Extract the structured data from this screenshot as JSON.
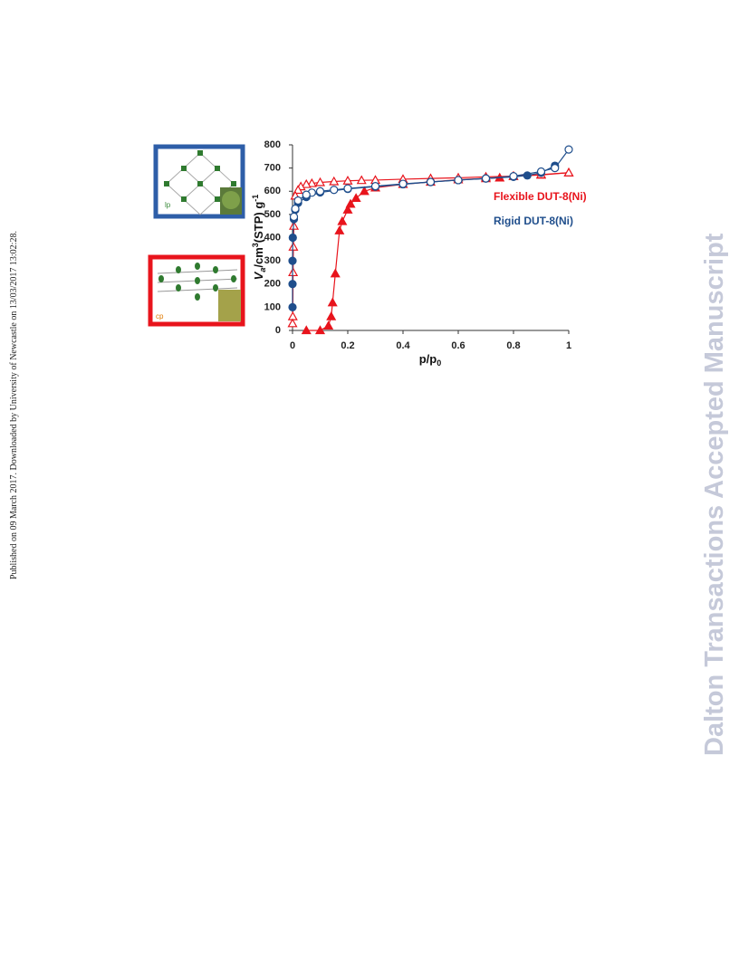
{
  "sidebar": "Published on 09 March 2017. Downloaded by University of Newcastle on 13/03/2017 13:02:28.",
  "watermark": "Dalton Transactions Accepted Manuscript",
  "insets": [
    {
      "label": "lp"
    },
    {
      "label": "cp"
    }
  ],
  "chart_data": {
    "type": "line",
    "ylabel": [
      "V",
      "a",
      "/cm",
      "3",
      "(STP) g",
      "-1"
    ],
    "xlabel": [
      "p/p",
      "0"
    ],
    "xlim": [
      0,
      1
    ],
    "xticks": [
      0,
      0.2,
      0.4,
      0.6,
      0.8,
      1
    ],
    "ylim": [
      0,
      800
    ],
    "yticks": [
      0,
      100,
      200,
      300,
      400,
      500,
      600,
      700,
      800
    ],
    "grid": false,
    "series": [
      {
        "name": "Flexible DUT-8(Ni)",
        "color": "#e8141c",
        "marker": "triangle",
        "filled": true,
        "x": [
          0.05,
          0.1,
          0.13,
          0.14,
          0.145,
          0.155,
          0.17,
          0.18,
          0.2,
          0.21,
          0.23,
          0.26,
          0.3,
          0.4,
          0.5,
          0.6,
          0.7,
          0.75,
          0.8,
          0.9,
          1.0
        ],
        "values": [
          0,
          0,
          20,
          60,
          120,
          245,
          430,
          470,
          520,
          545,
          570,
          600,
          615,
          630,
          640,
          650,
          655,
          658,
          665,
          670,
          680
        ]
      },
      {
        "color": "#e8141c",
        "marker": "triangle",
        "filled": false,
        "x": [
          1.0,
          0.9,
          0.8,
          0.7,
          0.6,
          0.5,
          0.4,
          0.3,
          0.25,
          0.2,
          0.15,
          0.1,
          0.07,
          0.05,
          0.03,
          0.02,
          0.01,
          0.005,
          0.003,
          0.002,
          0.001,
          0.0
        ],
        "values": [
          680,
          672,
          665,
          662,
          658,
          655,
          652,
          648,
          647,
          645,
          642,
          638,
          634,
          630,
          620,
          605,
          580,
          450,
          360,
          250,
          60,
          30
        ]
      },
      {
        "name": "Rigid DUT-8(Ni)",
        "color": "#1f4e8c",
        "marker": "circle",
        "filled": true,
        "x": [
          0.0,
          0.0,
          0.0,
          0.001,
          0.005,
          0.01,
          0.02,
          0.05,
          0.1,
          0.2,
          0.3,
          0.4,
          0.5,
          0.6,
          0.7,
          0.8,
          0.85,
          0.9,
          0.95
        ],
        "values": [
          100,
          200,
          300,
          400,
          480,
          520,
          550,
          575,
          595,
          610,
          620,
          630,
          640,
          648,
          655,
          662,
          668,
          680,
          710
        ]
      },
      {
        "color": "#1f4e8c",
        "marker": "circle",
        "filled": false,
        "x": [
          1.0,
          0.95,
          0.9,
          0.8,
          0.7,
          0.6,
          0.5,
          0.4,
          0.3,
          0.2,
          0.15,
          0.1,
          0.07,
          0.05,
          0.02,
          0.01,
          0.005
        ],
        "values": [
          780,
          700,
          685,
          665,
          655,
          648,
          640,
          632,
          622,
          612,
          606,
          600,
          594,
          585,
          560,
          525,
          490
        ]
      }
    ]
  }
}
